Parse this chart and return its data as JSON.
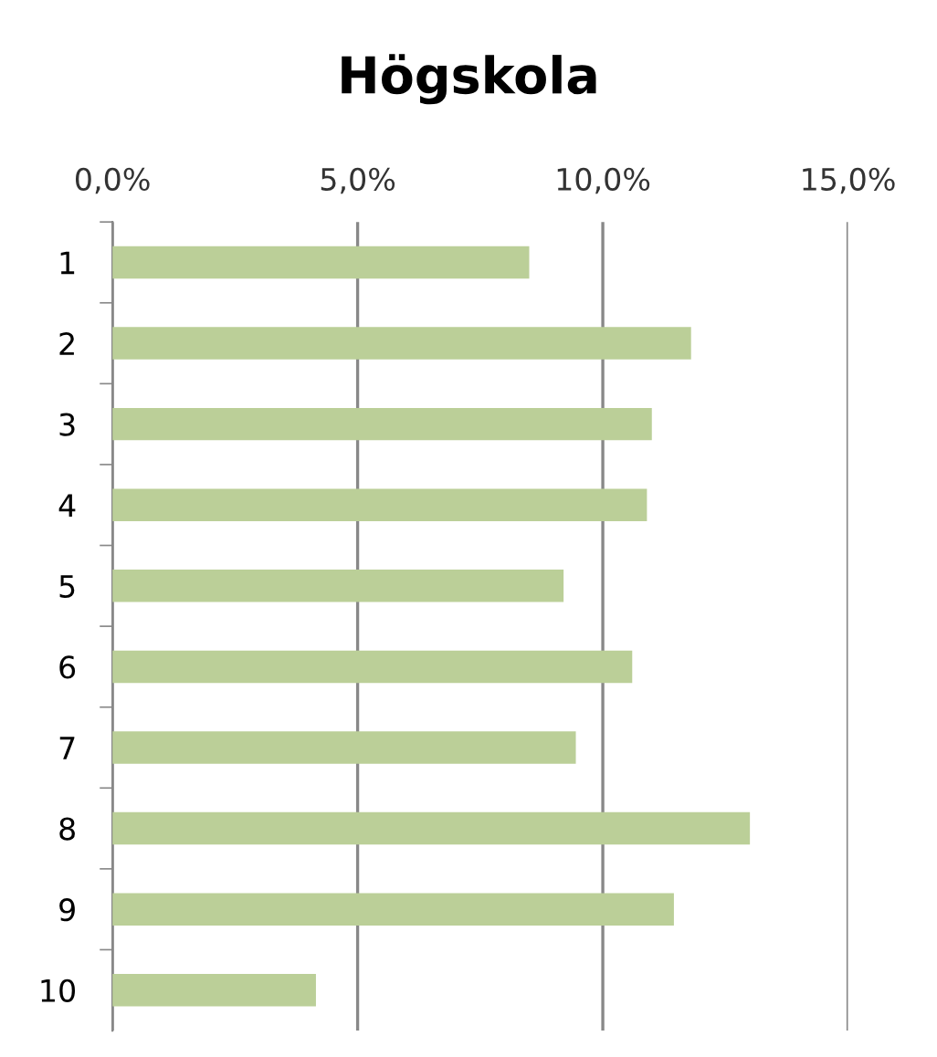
{
  "chart_data": {
    "type": "bar",
    "orientation": "horizontal",
    "title": "Högskola",
    "categories": [
      "1",
      "2",
      "3",
      "4",
      "5",
      "6",
      "7",
      "8",
      "9",
      "10"
    ],
    "values": [
      8.5,
      11.8,
      11.0,
      10.9,
      9.2,
      10.6,
      9.45,
      13.0,
      11.45,
      4.15
    ],
    "color": "#bbcf98",
    "xlim": [
      0,
      15
    ],
    "xticks": [
      {
        "value": 0,
        "label": "0,0%"
      },
      {
        "value": 5,
        "label": "5,0%"
      },
      {
        "value": 10,
        "label": "10,0%"
      },
      {
        "value": 15,
        "label": "15,0%"
      }
    ],
    "grid": "x"
  }
}
